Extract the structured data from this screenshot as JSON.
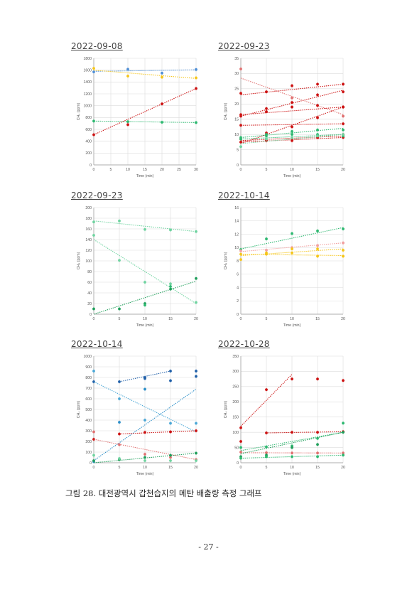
{
  "figure": {
    "caption": "그림 28. 대전광역시 갑천습지의 메탄 배출량 측정 그래프",
    "page_number": "- 27 -"
  },
  "chart_data": [
    {
      "type": "scatter",
      "title": "2022-09-08",
      "xlabel": "Time (min)",
      "ylabel": "CH₄ (ppm)",
      "xlim": [
        0,
        30
      ],
      "ylim": [
        0,
        1800
      ],
      "xticks": [
        0,
        5,
        10,
        15,
        20,
        25,
        30
      ],
      "yticks": [
        0,
        200,
        400,
        600,
        800,
        1000,
        1200,
        1400,
        1600,
        1800
      ],
      "series": [
        {
          "color": "#4f8fd6",
          "x": [
            0,
            10,
            20,
            30
          ],
          "y": [
            1570,
            1615,
            1550,
            1610
          ],
          "trend": [
            1580,
            1605
          ]
        },
        {
          "color": "#f5c518",
          "x": [
            0,
            10,
            20,
            30
          ],
          "y": [
            1630,
            1500,
            1480,
            1470
          ],
          "trend": [
            1600,
            1460
          ]
        },
        {
          "color": "#2db870",
          "x": [
            0,
            10,
            20,
            30
          ],
          "y": [
            740,
            730,
            720,
            715
          ],
          "trend": [
            740,
            715
          ]
        },
        {
          "color": "#cc1111",
          "x": [
            0,
            10,
            20,
            30
          ],
          "y": [
            510,
            680,
            1030,
            1290
          ],
          "trend": [
            510,
            1290
          ]
        }
      ]
    },
    {
      "type": "scatter",
      "title": "2022-09-23",
      "xlabel": "Time (min)",
      "ylabel": "CH₄ (ppm)",
      "xlim": [
        0,
        20
      ],
      "ylim": [
        0,
        35
      ],
      "xticks": [
        0,
        5,
        10,
        15,
        20
      ],
      "yticks": [
        0,
        5,
        10,
        15,
        20,
        25,
        30,
        35
      ],
      "series": [
        {
          "color": "#e07070",
          "x": [
            0,
            5,
            10,
            15,
            20
          ],
          "y": [
            31.5,
            24,
            22,
            19.5,
            16
          ],
          "trend": [
            28.5,
            16.5
          ]
        },
        {
          "color": "#cc1111",
          "x": [
            0,
            5,
            10,
            15,
            20
          ],
          "y": [
            23.5,
            24,
            26,
            26.5,
            26.5
          ],
          "trend": [
            23,
            26.5
          ]
        },
        {
          "color": "#cc1111",
          "x": [
            0,
            5,
            10,
            15,
            20
          ],
          "y": [
            16.5,
            18.5,
            20.5,
            23,
            24
          ],
          "trend": [
            16,
            24.5
          ]
        },
        {
          "color": "#cc1111",
          "x": [
            0,
            5,
            10,
            15,
            20
          ],
          "y": [
            16,
            17.5,
            19,
            19.5,
            19
          ],
          "trend": [
            16.5,
            19
          ]
        },
        {
          "color": "#cc1111",
          "x": [
            0,
            5,
            10,
            15,
            20
          ],
          "y": [
            7.5,
            10.5,
            12.5,
            15.5,
            19
          ],
          "trend": [
            7,
            19
          ]
        },
        {
          "color": "#cc1111",
          "x": [
            0,
            5,
            10,
            15,
            20
          ],
          "y": [
            8.5,
            8,
            8,
            9.5,
            10
          ],
          "trend": [
            8,
            9.5
          ]
        },
        {
          "color": "#cc1111",
          "x": [
            0,
            5,
            10,
            15,
            20
          ],
          "y": [
            7.5,
            8,
            8,
            9,
            9
          ],
          "trend": [
            7.5,
            9
          ]
        },
        {
          "color": "#2db870",
          "x": [
            0,
            5,
            10,
            15,
            20
          ],
          "y": [
            9,
            10,
            11,
            11.5,
            11.5
          ],
          "trend": [
            9,
            12
          ]
        },
        {
          "color": "#2db870",
          "x": [
            0,
            5,
            10,
            15,
            20
          ],
          "y": [
            8.5,
            9.5,
            10,
            10,
            9.5
          ],
          "trend": [
            8.5,
            10
          ]
        },
        {
          "color": "#6fd3a0",
          "x": [
            0,
            5,
            10,
            15,
            20
          ],
          "y": [
            6,
            8.5,
            9,
            9.5,
            10
          ],
          "trend": [
            7,
            10
          ]
        },
        {
          "color": "#cc1111",
          "x": [
            0,
            20
          ],
          "y": [
            13,
            13.5
          ],
          "trend": [
            13,
            13.5
          ]
        }
      ]
    },
    {
      "type": "scatter",
      "title": "2022-09-23",
      "xlabel": "Time (min)",
      "ylabel": "CH₄ (ppm)",
      "xlim": [
        0,
        20
      ],
      "ylim": [
        0,
        200
      ],
      "xticks": [
        0,
        5,
        10,
        15,
        20
      ],
      "yticks": [
        0,
        20,
        40,
        60,
        80,
        100,
        120,
        140,
        160,
        180,
        200
      ],
      "series": [
        {
          "color": "#6fd3a0",
          "x": [
            0,
            5,
            10,
            15,
            20
          ],
          "y": [
            173,
            175,
            159,
            158,
            155
          ],
          "trend": [
            175,
            155
          ]
        },
        {
          "color": "#6fd3a0",
          "x": [
            0,
            5,
            10,
            15,
            20
          ],
          "y": [
            148,
            101,
            60,
            57,
            22
          ],
          "trend": [
            140,
            20
          ]
        },
        {
          "color": "#1f9e5a",
          "x": [
            0,
            5,
            10,
            15,
            20
          ],
          "y": [
            10,
            10,
            20,
            47,
            67
          ],
          "trend": [
            0,
            62
          ]
        },
        {
          "color": "#2db870",
          "x": [
            10,
            15
          ],
          "y": [
            17,
            52
          ],
          "trend": []
        }
      ]
    },
    {
      "type": "scatter",
      "title": "2022-10-14",
      "xlabel": "Time (min)",
      "ylabel": "CH₄ (ppm)",
      "xlim": [
        0,
        20
      ],
      "ylim": [
        0,
        16
      ],
      "xticks": [
        0,
        5,
        10,
        15,
        20
      ],
      "yticks": [
        0,
        2,
        4,
        6,
        8,
        10,
        12,
        14,
        16
      ],
      "series": [
        {
          "color": "#2db870",
          "x": [
            0,
            5,
            10,
            15,
            20
          ],
          "y": [
            9.7,
            11.3,
            12.1,
            12.5,
            12.8
          ],
          "trend": [
            9.8,
            13
          ]
        },
        {
          "color": "#f2a0a0",
          "x": [
            0,
            5,
            10,
            15,
            20
          ],
          "y": [
            9.5,
            9.6,
            10.0,
            10.3,
            10.7
          ],
          "trend": [
            9.4,
            10.7
          ]
        },
        {
          "color": "#f5c518",
          "x": [
            0,
            5,
            10,
            15,
            20
          ],
          "y": [
            8.2,
            9.2,
            9.8,
            9.8,
            9.6
          ],
          "trend": [
            8.8,
            9.8
          ]
        },
        {
          "color": "#f5c518",
          "x": [
            0,
            5,
            10,
            15,
            20
          ],
          "y": [
            9.0,
            9.0,
            9.2,
            8.7,
            8.7
          ],
          "trend": [
            9.0,
            8.8
          ]
        }
      ]
    },
    {
      "type": "scatter",
      "title": "2022-10-14",
      "xlabel": "Time (min)",
      "ylabel": "CH₄ (ppm)",
      "xlim": [
        0,
        20
      ],
      "ylim": [
        0,
        1000
      ],
      "xticks": [
        0,
        5,
        10,
        15,
        20
      ],
      "yticks": [
        0,
        100,
        200,
        300,
        400,
        500,
        600,
        700,
        800,
        900,
        1000
      ],
      "series": [
        {
          "color": "#1f5fa8",
          "x": [
            0,
            5,
            10,
            15,
            20
          ],
          "y": [
            760,
            760,
            800,
            860,
            860
          ],
          "trend": [],
          "partial": [
            [
              5,
              760
            ],
            [
              15,
              860
            ]
          ]
        },
        {
          "color": "#1f5fa8",
          "x": [
            10,
            15,
            20
          ],
          "y": [
            790,
            770,
            810
          ],
          "trend": []
        },
        {
          "color": "#4aa7d6",
          "x": [
            0,
            5,
            10,
            15,
            20
          ],
          "y": [
            860,
            600,
            400,
            370,
            370
          ],
          "trend": [
            760,
            290
          ]
        },
        {
          "color": "#2a8ec8",
          "x": [
            0,
            5,
            10
          ],
          "y": [
            10,
            380,
            690
          ],
          "trend": [
            20,
            690
          ]
        },
        {
          "color": "#cc1111",
          "x": [
            0,
            5,
            10,
            15,
            20
          ],
          "y": [
            220,
            270,
            285,
            290,
            300
          ],
          "trend": [],
          "partial": [
            [
              5,
              270
            ],
            [
              20,
              300
            ]
          ]
        },
        {
          "color": "#e07070",
          "x": [
            0,
            5,
            10,
            15,
            20
          ],
          "y": [
            290,
            170,
            80,
            50,
            30
          ],
          "trend": [
            220,
            30
          ]
        },
        {
          "color": "#1f9e5a",
          "x": [
            0,
            5,
            10,
            15,
            20
          ],
          "y": [
            20,
            30,
            50,
            70,
            90
          ],
          "trend": [
            0,
            90
          ]
        },
        {
          "color": "#6fd3a0",
          "x": [
            0,
            5,
            10,
            15,
            20
          ],
          "y": [
            70,
            40,
            20,
            20,
            20
          ],
          "trend": []
        }
      ]
    },
    {
      "type": "scatter",
      "title": "2022-10-28",
      "xlabel": "Time (min)",
      "ylabel": "CH₄ (ppm)",
      "xlim": [
        0,
        20
      ],
      "ylim": [
        0,
        350
      ],
      "xticks": [
        0,
        5,
        10,
        15,
        20
      ],
      "yticks": [
        0,
        50,
        100,
        150,
        200,
        250,
        300,
        350
      ],
      "series": [
        {
          "color": "#cc1111",
          "x": [
            0,
            5,
            10,
            15,
            20
          ],
          "y": [
            115,
            240,
            275,
            275,
            270
          ],
          "trend": [],
          "partial": [
            [
              0,
              120
            ],
            [
              10,
              290
            ]
          ]
        },
        {
          "color": "#cc1111",
          "x": [
            0,
            5,
            10,
            15,
            20
          ],
          "y": [
            70,
            98,
            100,
            100,
            102
          ],
          "trend": [],
          "partial": [
            [
              5,
              98
            ],
            [
              20,
              102
            ]
          ]
        },
        {
          "color": "#e07070",
          "x": [
            0,
            5,
            10,
            15,
            20
          ],
          "y": [
            35,
            33,
            32,
            32,
            32
          ],
          "trend": [
            33,
            32
          ]
        },
        {
          "color": "#2db870",
          "x": [
            0,
            5,
            10,
            15,
            20
          ],
          "y": [
            50,
            52,
            55,
            80,
            130
          ],
          "trend": [
            40,
            100
          ]
        },
        {
          "color": "#1f9e5a",
          "x": [
            0,
            5,
            10,
            15,
            20
          ],
          "y": [
            20,
            25,
            50,
            60,
            100
          ],
          "trend": [
            30,
            100
          ]
        },
        {
          "color": "#2db870",
          "x": [
            0,
            5,
            10,
            15,
            20
          ],
          "y": [
            15,
            20,
            20,
            20,
            25
          ],
          "trend": [
            15,
            25
          ]
        }
      ]
    }
  ]
}
